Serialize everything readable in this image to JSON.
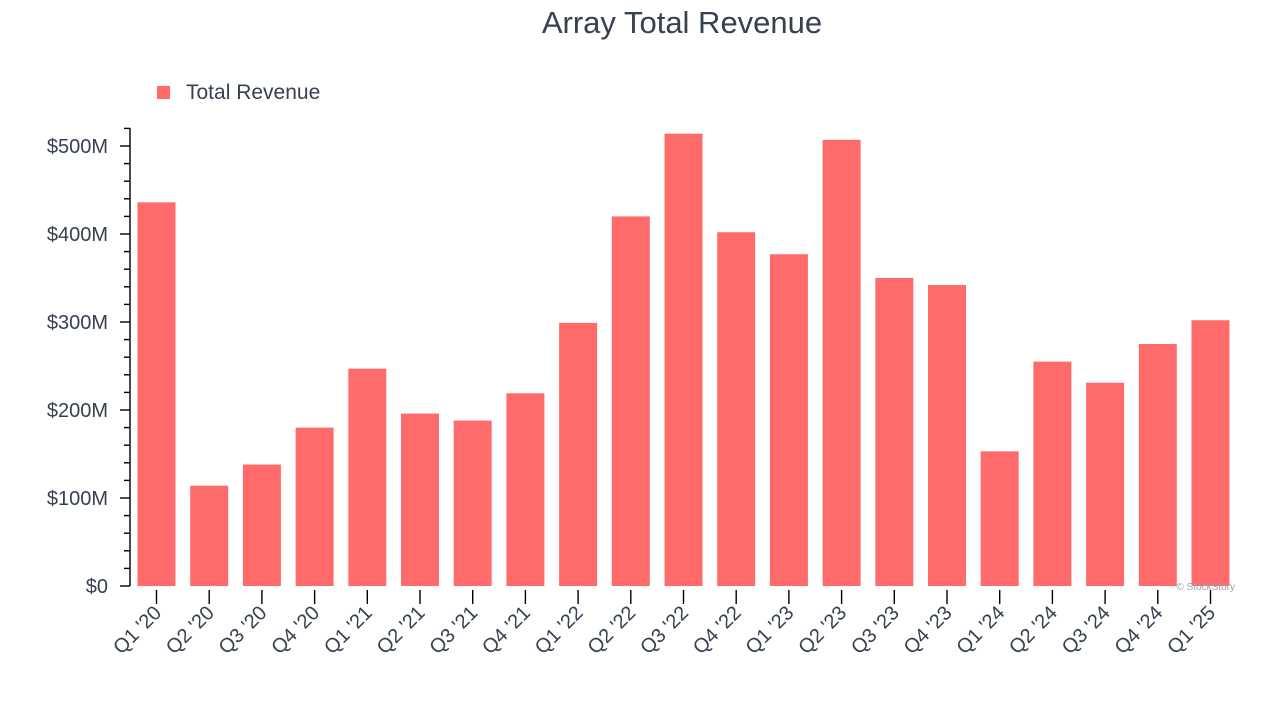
{
  "chart_data": {
    "type": "bar",
    "title": "Array Total Revenue",
    "legend": {
      "position": "top-left"
    },
    "watermark": "© StockStory",
    "categories": [
      "Q1 '20",
      "Q2 '20",
      "Q3 '20",
      "Q4 '20",
      "Q1 '21",
      "Q2 '21",
      "Q3 '21",
      "Q4 '21",
      "Q1 '22",
      "Q2 '22",
      "Q3 '22",
      "Q4 '22",
      "Q1 '23",
      "Q2 '23",
      "Q3 '23",
      "Q4 '23",
      "Q1 '24",
      "Q2 '24",
      "Q3 '24",
      "Q4 '24",
      "Q1 '25"
    ],
    "series": [
      {
        "name": "Total Revenue",
        "color": "#ff6b6b",
        "values": [
          436,
          114,
          138,
          180,
          247,
          196,
          188,
          219,
          299,
          420,
          514,
          402,
          377,
          507,
          350,
          342,
          153,
          255,
          231,
          275,
          302
        ]
      }
    ],
    "ylim": [
      0,
      520
    ],
    "yticks": [
      0,
      100,
      200,
      300,
      400,
      500
    ],
    "ytick_labels": [
      "$0",
      "$100M",
      "$200M",
      "$300M",
      "$400M",
      "$500M"
    ],
    "grid": false
  }
}
